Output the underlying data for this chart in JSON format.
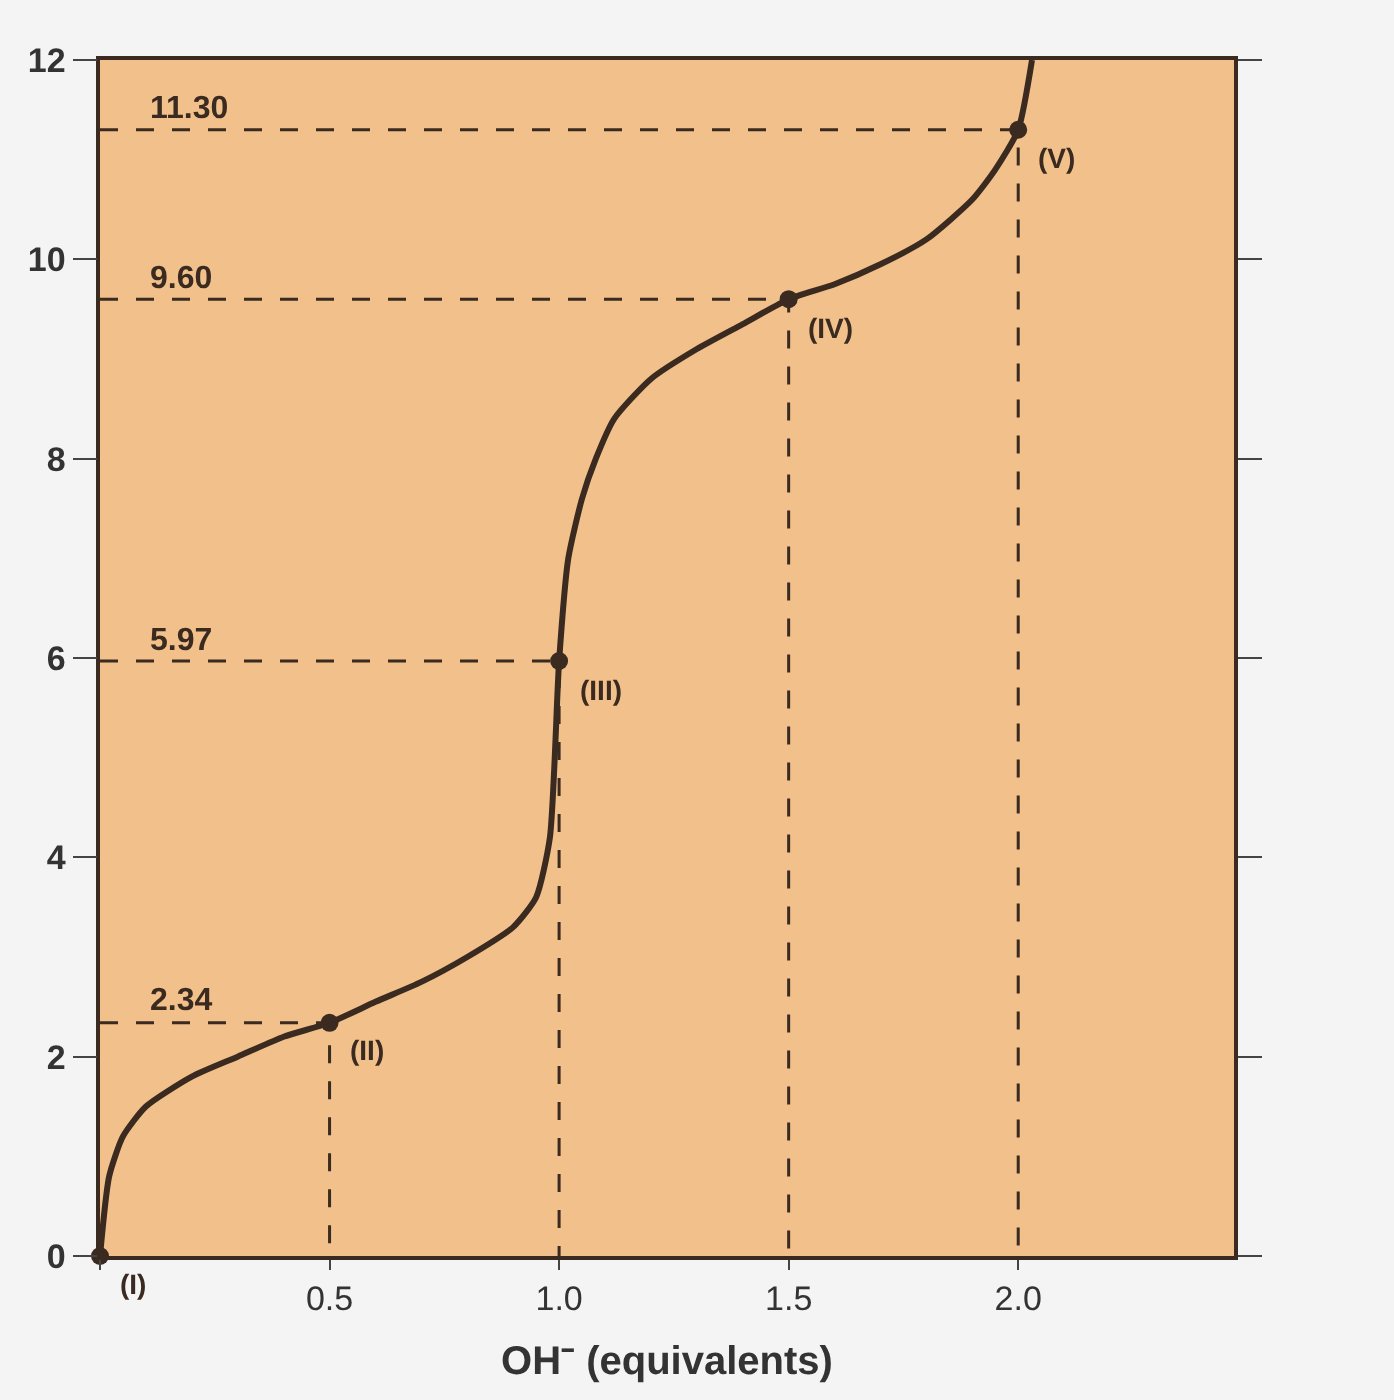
{
  "chart_data": {
    "type": "line",
    "xlabel": "OH⁻ (equivalents)",
    "xlim": [
      0,
      2.47
    ],
    "ylim": [
      0,
      12
    ],
    "xticks": [
      {
        "value": 0,
        "label": null
      },
      0.5,
      {
        "value": 1,
        "label": "1.0"
      },
      1.5,
      {
        "value": 2,
        "label": "2.0"
      }
    ],
    "yticks": [
      0,
      2,
      4,
      6,
      8,
      10,
      12
    ],
    "series": [
      {
        "color": "#3a2a20",
        "line_style": "solid",
        "marker": "none",
        "x": [
          0,
          0.02,
          0.05,
          0.1,
          0.2,
          0.3,
          0.4,
          0.5,
          0.6,
          0.7,
          0.8,
          0.9,
          0.95,
          0.98,
          1.0,
          1.02,
          1.05,
          1.08,
          1.12,
          1.2,
          1.3,
          1.4,
          1.5,
          1.6,
          1.7,
          1.8,
          1.9,
          1.95,
          2.0,
          2.03
        ],
        "values": [
          0,
          0.8,
          1.2,
          1.5,
          1.8,
          2.0,
          2.2,
          2.34,
          2.55,
          2.75,
          3.0,
          3.3,
          3.6,
          4.2,
          5.97,
          7.0,
          7.6,
          8.0,
          8.4,
          8.8,
          9.1,
          9.35,
          9.6,
          9.75,
          9.95,
          10.2,
          10.6,
          10.9,
          11.3,
          12
        ]
      },
      {
        "type": "scatter",
        "color": "#3a2a20",
        "marker": "circle",
        "x": [
          0,
          0.5,
          1.0,
          1.5,
          2.0
        ],
        "values": [
          0,
          2.34,
          5.97,
          9.6,
          11.3
        ]
      },
      {
        "type": "line",
        "color": "#3a2a20",
        "line_style": "dashed",
        "marker": "none",
        "x": [
          0,
          0.5,
          0.5
        ],
        "values": [
          2.34,
          2.34,
          0
        ]
      },
      {
        "type": "line",
        "color": "#3a2a20",
        "line_style": "dashed",
        "marker": "none",
        "x": [
          0,
          1.0,
          1.0
        ],
        "values": [
          5.97,
          5.97,
          0
        ]
      },
      {
        "type": "line",
        "color": "#3a2a20",
        "line_style": "dashed",
        "marker": "none",
        "x": [
          0,
          1.5,
          1.5
        ],
        "values": [
          9.6,
          9.6,
          0
        ]
      },
      {
        "type": "line",
        "color": "#3a2a20",
        "line_style": "dashed",
        "marker": "none",
        "x": [
          0,
          2.0,
          2.0
        ],
        "values": [
          11.3,
          11.3,
          0
        ]
      }
    ],
    "annotations": [
      {
        "text": "2.34",
        "x": 0.1,
        "y": 2.34
      },
      {
        "text": "5.97",
        "x": 0.1,
        "y": 5.97
      },
      {
        "text": "9.60",
        "x": 0.1,
        "y": 9.6
      },
      {
        "text": "11.30",
        "x": 0.1,
        "y": 11.3
      },
      {
        "text": "(I)",
        "x": 0,
        "y": 0
      },
      {
        "text": "(II)",
        "x": 0.5,
        "y": 2.34
      },
      {
        "text": "(III)",
        "x": 1.0,
        "y": 5.97
      },
      {
        "text": "(IV)",
        "x": 1.5,
        "y": 9.6
      },
      {
        "text": "(V)",
        "x": 2.0,
        "y": 11.3
      }
    ],
    "grid": false
  }
}
